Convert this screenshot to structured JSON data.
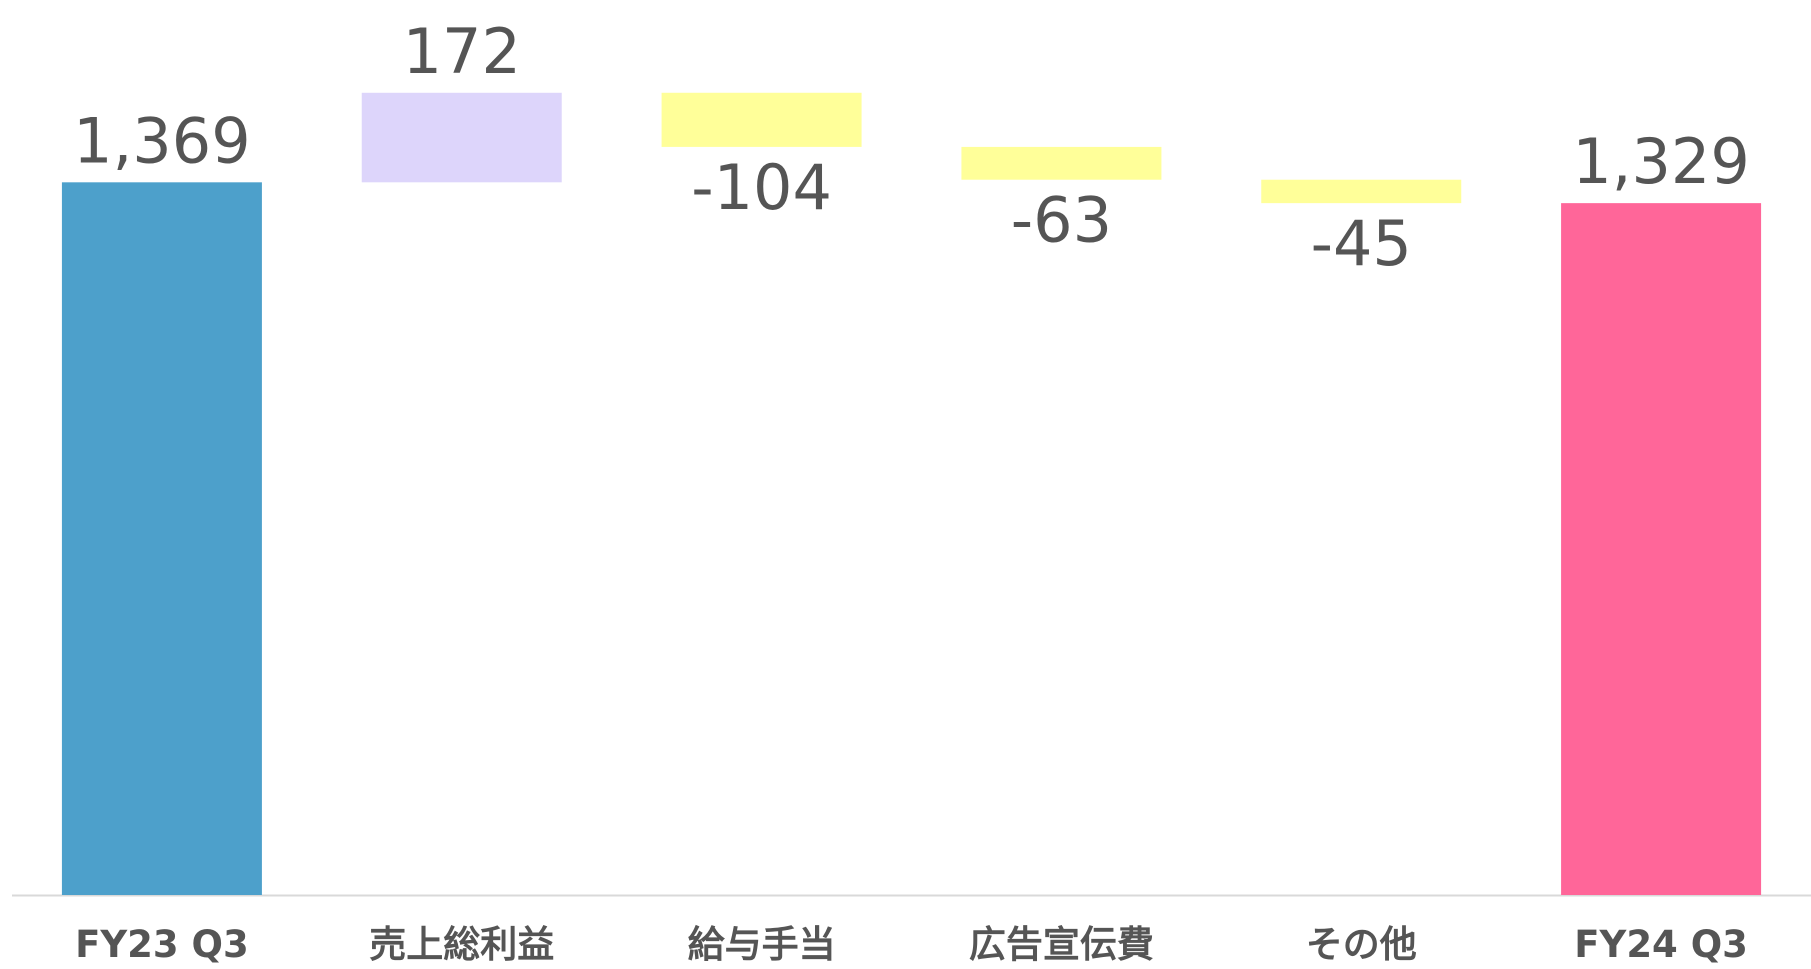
{
  "chart_data": {
    "type": "waterfall",
    "categories": [
      "FY23 Q3",
      "売上総利益",
      "給与手当",
      "広告宣伝費",
      "その他",
      "FY24 Q3"
    ],
    "values": [
      1369,
      172,
      -104,
      -63,
      -45,
      1329
    ],
    "value_labels": [
      "1,369",
      "172",
      "-104",
      "-63",
      "-45",
      "1,329"
    ],
    "measure": [
      "total",
      "relative",
      "relative",
      "relative",
      "relative",
      "total"
    ],
    "colors": [
      "#4da0cb",
      "#ddd5fb",
      "#ffff99",
      "#ffff99",
      "#ffff99",
      "#ff6699"
    ],
    "ylim": [
      0,
      1700
    ]
  }
}
